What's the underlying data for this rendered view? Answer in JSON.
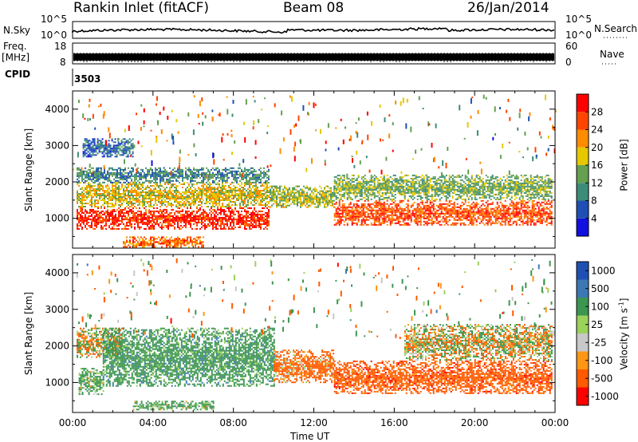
{
  "header": {
    "station": "Rankin Inlet (fitACF)",
    "beam": "Beam 08",
    "date": "26/Jan/2014"
  },
  "left_labels": {
    "nsky": "N.Sky",
    "freq_line1": "Freq.",
    "freq_line2": "[MHz]",
    "cpid": "CPID"
  },
  "right_labels": {
    "nsearch": "N.Search",
    "nave": "Nave"
  },
  "noise_axis": {
    "top": "10^5",
    "bottom": "10^0"
  },
  "freq_axis": {
    "top": "18",
    "bottom": "8"
  },
  "nave_axis": {
    "top": "60",
    "bottom": "0"
  },
  "cpid_value": "3503",
  "colors": {
    "power_scale": [
      "#1010e0",
      "#1e50b4",
      "#3c8c78",
      "#64a050",
      "#e6c800",
      "#ff8c00",
      "#ff4500",
      "#ff0000"
    ],
    "velocity_scale": [
      "#ff0000",
      "#ff5a00",
      "#ff9614",
      "#c8c8c8",
      "#9bd25a",
      "#3c9650",
      "#3c78b4",
      "#1e50b4"
    ],
    "ground_scatter": "#c8c8c8"
  },
  "chart_data": [
    {
      "type": "heatmap",
      "title": "Power",
      "xlabel": "Time UT",
      "ylabel": "Slant Range [km]",
      "x_ticks": [
        "00:00",
        "04:00",
        "08:00",
        "12:00",
        "16:00",
        "20:00",
        "00:00"
      ],
      "x_range_hours": [
        0,
        24
      ],
      "y_ticks": [
        1000,
        2000,
        3000,
        4000
      ],
      "ylim": [
        180,
        4500
      ],
      "colorbar": {
        "label": "Power [dB]",
        "ticks": [
          4,
          8,
          12,
          16,
          20,
          24,
          28
        ],
        "range": [
          0,
          32
        ]
      },
      "features": [
        {
          "hours": [
            0.2,
            9.8
          ],
          "range_km": [
            700,
            1300
          ],
          "value": 28
        },
        {
          "hours": [
            0.2,
            9.8
          ],
          "range_km": [
            1300,
            2000
          ],
          "value": 18
        },
        {
          "hours": [
            0.2,
            9.8
          ],
          "range_km": [
            2000,
            2400
          ],
          "value": 10
        },
        {
          "hours": [
            9.8,
            13.0
          ],
          "range_km": [
            1300,
            1900
          ],
          "value": 16
        },
        {
          "hours": [
            13.0,
            23.8
          ],
          "range_km": [
            800,
            1500
          ],
          "value": 26
        },
        {
          "hours": [
            13.0,
            23.8
          ],
          "range_km": [
            1500,
            2200
          ],
          "value": 14
        },
        {
          "hours": [
            2.5,
            6.5
          ],
          "range_km": [
            200,
            500
          ],
          "value": 24
        },
        {
          "hours": [
            0.5,
            3.0
          ],
          "range_km": [
            2700,
            3200
          ],
          "value": 8
        }
      ]
    },
    {
      "type": "heatmap",
      "title": "Velocity",
      "xlabel": "Time UT",
      "ylabel": "Slant Range [km]",
      "x_ticks": [
        "00:00",
        "04:00",
        "08:00",
        "12:00",
        "16:00",
        "20:00",
        "00:00"
      ],
      "x_range_hours": [
        0,
        24
      ],
      "y_ticks": [
        1000,
        2000,
        3000,
        4000
      ],
      "ylim": [
        180,
        4500
      ],
      "colorbar": {
        "label": "Velocity [m s-1]",
        "ticks": [
          "1000",
          "500",
          "100",
          "25",
          "-25",
          "-100",
          "-500",
          "-1000"
        ]
      },
      "features": [
        {
          "hours": [
            0.2,
            2.5
          ],
          "range_km": [
            1700,
            2500
          ],
          "value": 0
        },
        {
          "hours": [
            1.5,
            10.0
          ],
          "range_km": [
            900,
            2500
          ],
          "value": 300
        },
        {
          "hours": [
            0.3,
            1.5
          ],
          "range_km": [
            700,
            1400
          ],
          "value": 200
        },
        {
          "hours": [
            10.0,
            13.0
          ],
          "range_km": [
            1000,
            1900
          ],
          "value": -200
        },
        {
          "hours": [
            13.0,
            23.8
          ],
          "range_km": [
            700,
            1600
          ],
          "value": -300
        },
        {
          "hours": [
            16.5,
            23.8
          ],
          "range_km": [
            1600,
            2600
          ],
          "value": 0
        },
        {
          "hours": [
            3.0,
            7.0
          ],
          "range_km": [
            250,
            500
          ],
          "value": 200
        }
      ]
    }
  ]
}
